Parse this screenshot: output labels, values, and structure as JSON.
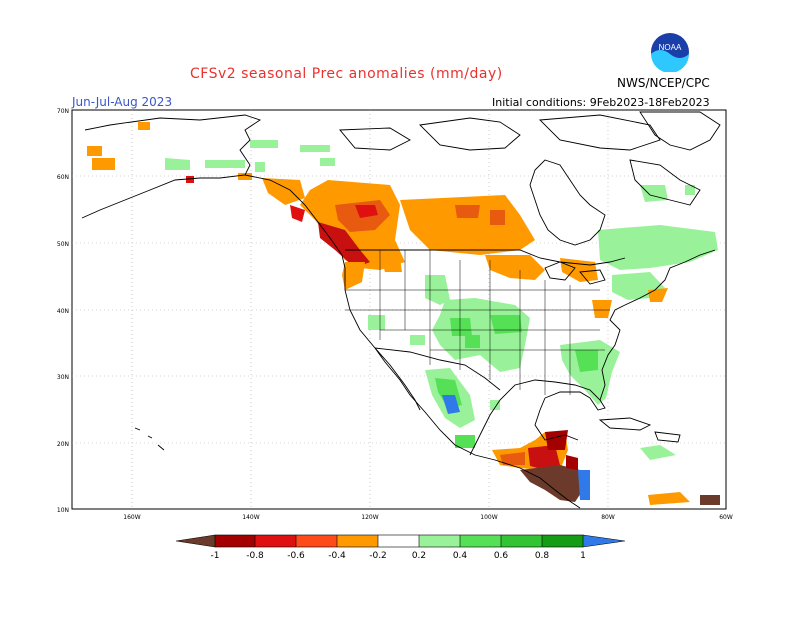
{
  "header": {
    "title": "CFSv2 seasonal Prec anomalies (mm/day)",
    "season": "Jun-Jul-Aug 2023",
    "initial_conditions": "Initial conditions: 9Feb2023-18Feb2023",
    "agency": "NWS/NCEP/CPC",
    "logo_text": "NOAA"
  },
  "axes": {
    "lat_labels": [
      "70N",
      "60N",
      "50N",
      "40N",
      "30N",
      "20N",
      "10N"
    ],
    "lon_labels": [
      "160W",
      "140W",
      "120W",
      "100W",
      "80W",
      "60W"
    ]
  },
  "legend": {
    "labels": [
      "-1",
      "-0.8",
      "-0.6",
      "-0.4",
      "-0.2",
      "0.2",
      "0.4",
      "0.6",
      "0.8",
      "1"
    ],
    "colors": [
      "#6b3a2a",
      "#a50000",
      "#e01010",
      "#ff4a1a",
      "#ff9900",
      "#ffffff",
      "#99f299",
      "#55e055",
      "#33c433",
      "#149c14",
      "#2f7ae8"
    ]
  }
}
